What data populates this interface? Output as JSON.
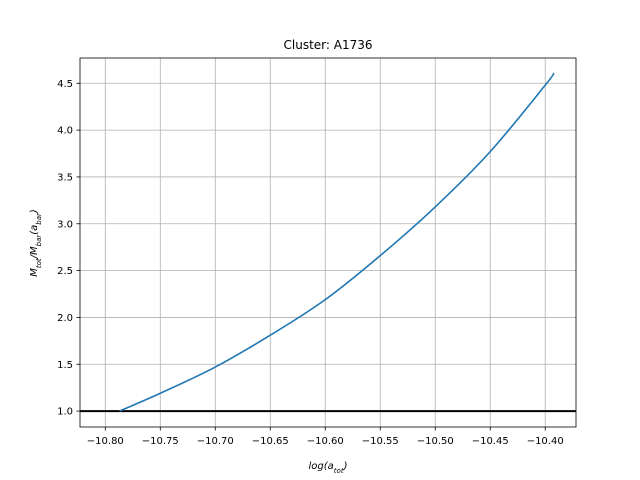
{
  "chart_data": {
    "type": "line",
    "title": "Cluster: A1736",
    "xlabel": {
      "base": "log(a",
      "sub": "tot",
      "close": ")"
    },
    "ylabel": {
      "m1": "M",
      "s1": "tot",
      "slash": "/M",
      "s2": "bar",
      "open": "(a",
      "s3": "bar",
      "close": ")"
    },
    "xlim": [
      -10.823,
      -10.372
    ],
    "ylim": [
      0.83,
      4.77
    ],
    "xticks": [
      -10.8,
      -10.75,
      -10.7,
      -10.65,
      -10.6,
      -10.55,
      -10.5,
      -10.45,
      -10.4
    ],
    "xtick_labels": [
      "−10.80",
      "−10.75",
      "−10.70",
      "−10.65",
      "−10.60",
      "−10.55",
      "−10.50",
      "−10.45",
      "−10.40"
    ],
    "yticks": [
      1.0,
      1.5,
      2.0,
      2.5,
      3.0,
      3.5,
      4.0,
      4.5
    ],
    "ytick_labels": [
      "1.0",
      "1.5",
      "2.0",
      "2.5",
      "3.0",
      "3.5",
      "4.0",
      "4.5"
    ],
    "grid": true,
    "series": [
      {
        "color": "#1f77b4",
        "x": [
          -10.787,
          -10.75,
          -10.7,
          -10.65,
          -10.6,
          -10.55,
          -10.5,
          -10.45,
          -10.4,
          -10.392
        ],
        "y": [
          1.0,
          1.19,
          1.47,
          1.81,
          2.19,
          2.66,
          3.18,
          3.77,
          4.48,
          4.61
        ]
      }
    ],
    "hlines": [
      {
        "y": 1.0,
        "color": "#000000"
      }
    ]
  }
}
